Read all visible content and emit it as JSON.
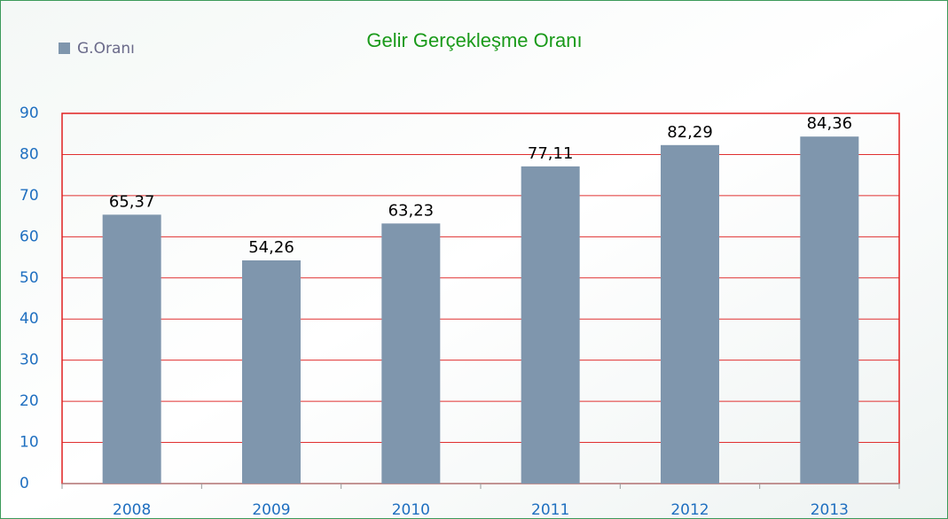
{
  "chart_data": {
    "type": "bar",
    "title": "Gelir Gerçekleşme Oranı",
    "categories": [
      "2008",
      "2009",
      "2010",
      "2011",
      "2012",
      "2013"
    ],
    "series": [
      {
        "name": "G.Oranı",
        "color": "#7f96ad",
        "values": [
          65.37,
          54.26,
          63.23,
          77.11,
          82.29,
          84.36
        ],
        "value_labels": [
          "65,37",
          "54,26",
          "63,23",
          "77,11",
          "82,29",
          "84,36"
        ]
      }
    ],
    "ylim": [
      0,
      90
    ],
    "yticks": [
      0,
      10,
      20,
      30,
      40,
      50,
      60,
      70,
      80,
      90
    ],
    "grid": true
  }
}
